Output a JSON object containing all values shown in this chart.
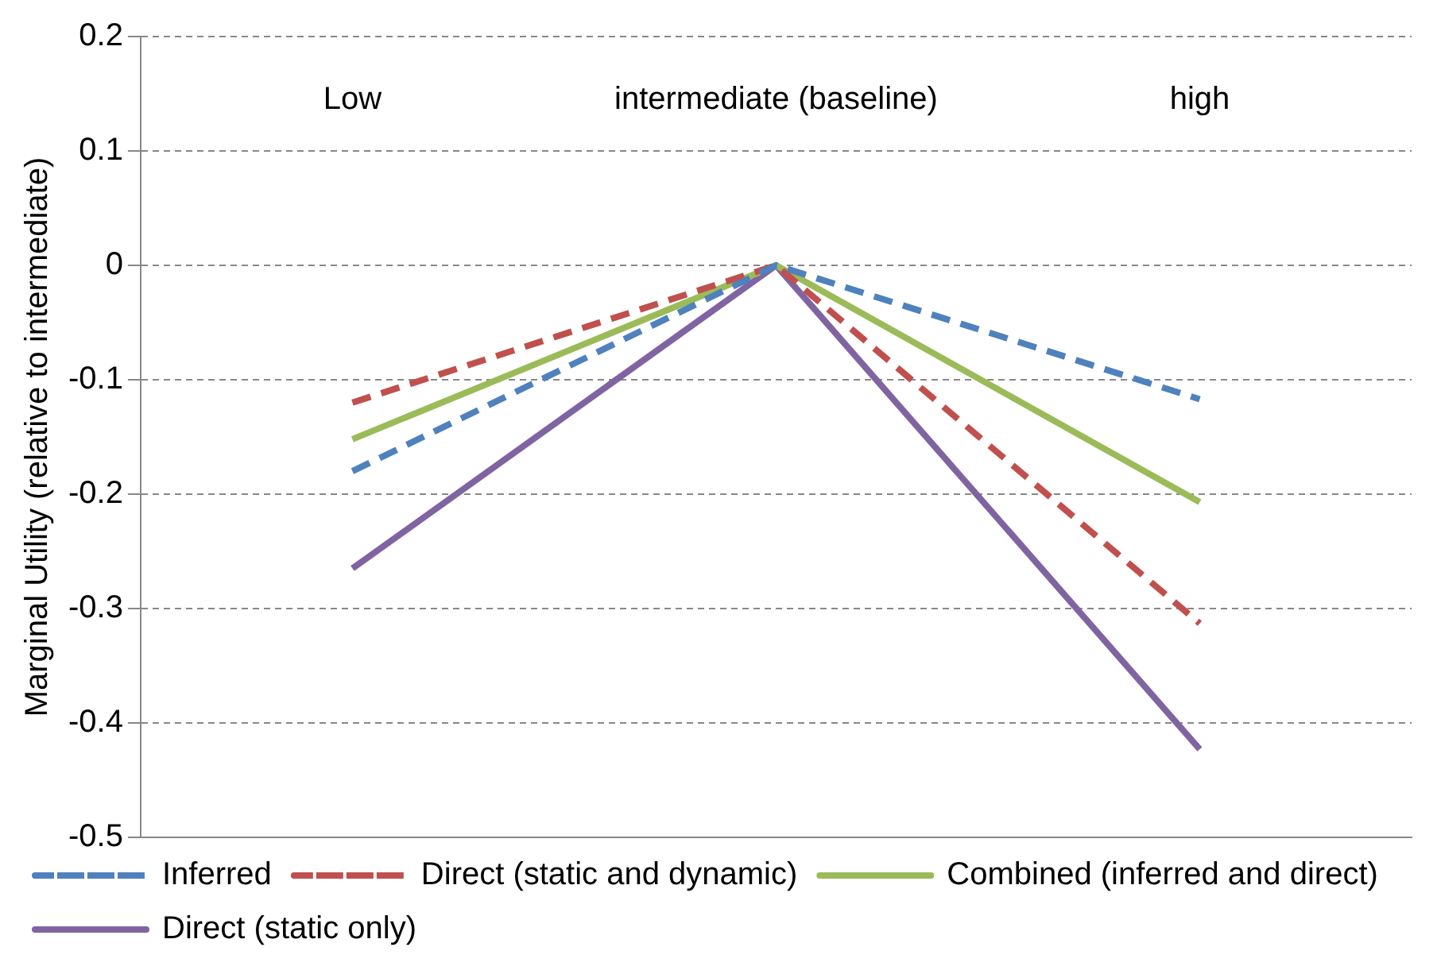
{
  "chart_data": {
    "type": "line",
    "ylabel": "Marginal Utility (relative to intermediate)",
    "categories": [
      "Low",
      "intermediate (baseline)",
      "high"
    ],
    "series": [
      {
        "name": "Inferred",
        "color": "#4f81bd",
        "line_style": "dashed",
        "values": [
          -0.18,
          0,
          -0.117
        ]
      },
      {
        "name": "Direct (static and dynamic)",
        "color": "#c0504d",
        "line_style": "dashed",
        "values": [
          -0.12,
          0,
          -0.313
        ]
      },
      {
        "name": "Combined (inferred and direct)",
        "color": "#9bbb59",
        "line_style": "solid",
        "values": [
          -0.152,
          0,
          -0.207
        ]
      },
      {
        "name": "Direct (static only)",
        "color": "#8064a2",
        "line_style": "solid",
        "values": [
          -0.265,
          0,
          -0.423
        ]
      }
    ],
    "ylim": [
      -0.5,
      0.2
    ],
    "yticks": [
      -0.5,
      -0.4,
      -0.3,
      -0.2,
      -0.1,
      0,
      0.1,
      0.2
    ],
    "grid": "y",
    "legend": "bottom",
    "marker": "none"
  }
}
